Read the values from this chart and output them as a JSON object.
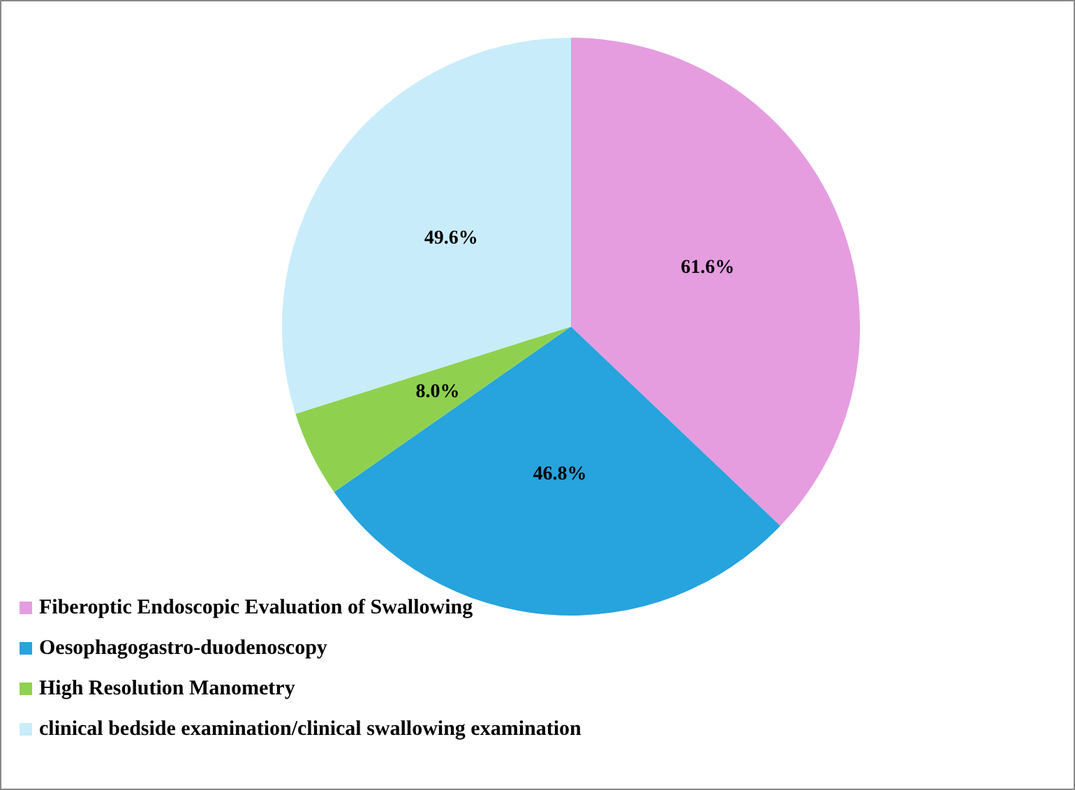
{
  "chart_data": {
    "type": "pie",
    "categories": [
      "Fiberoptic Endoscopic Evaluation of Swallowing",
      "Oesophagogastro-duodenoscopy",
      "High Resolution Manometry",
      "clinical bedside examination/clinical swallowing examination"
    ],
    "values": [
      61.6,
      46.8,
      8.0,
      49.6
    ],
    "value_labels": [
      "61.6%",
      "46.8%",
      "8.0%",
      "49.6%"
    ],
    "colors": [
      "#e59ddf",
      "#27a3dd",
      "#8fd14f",
      "#c9ecfa"
    ],
    "legend": "bottom left"
  }
}
